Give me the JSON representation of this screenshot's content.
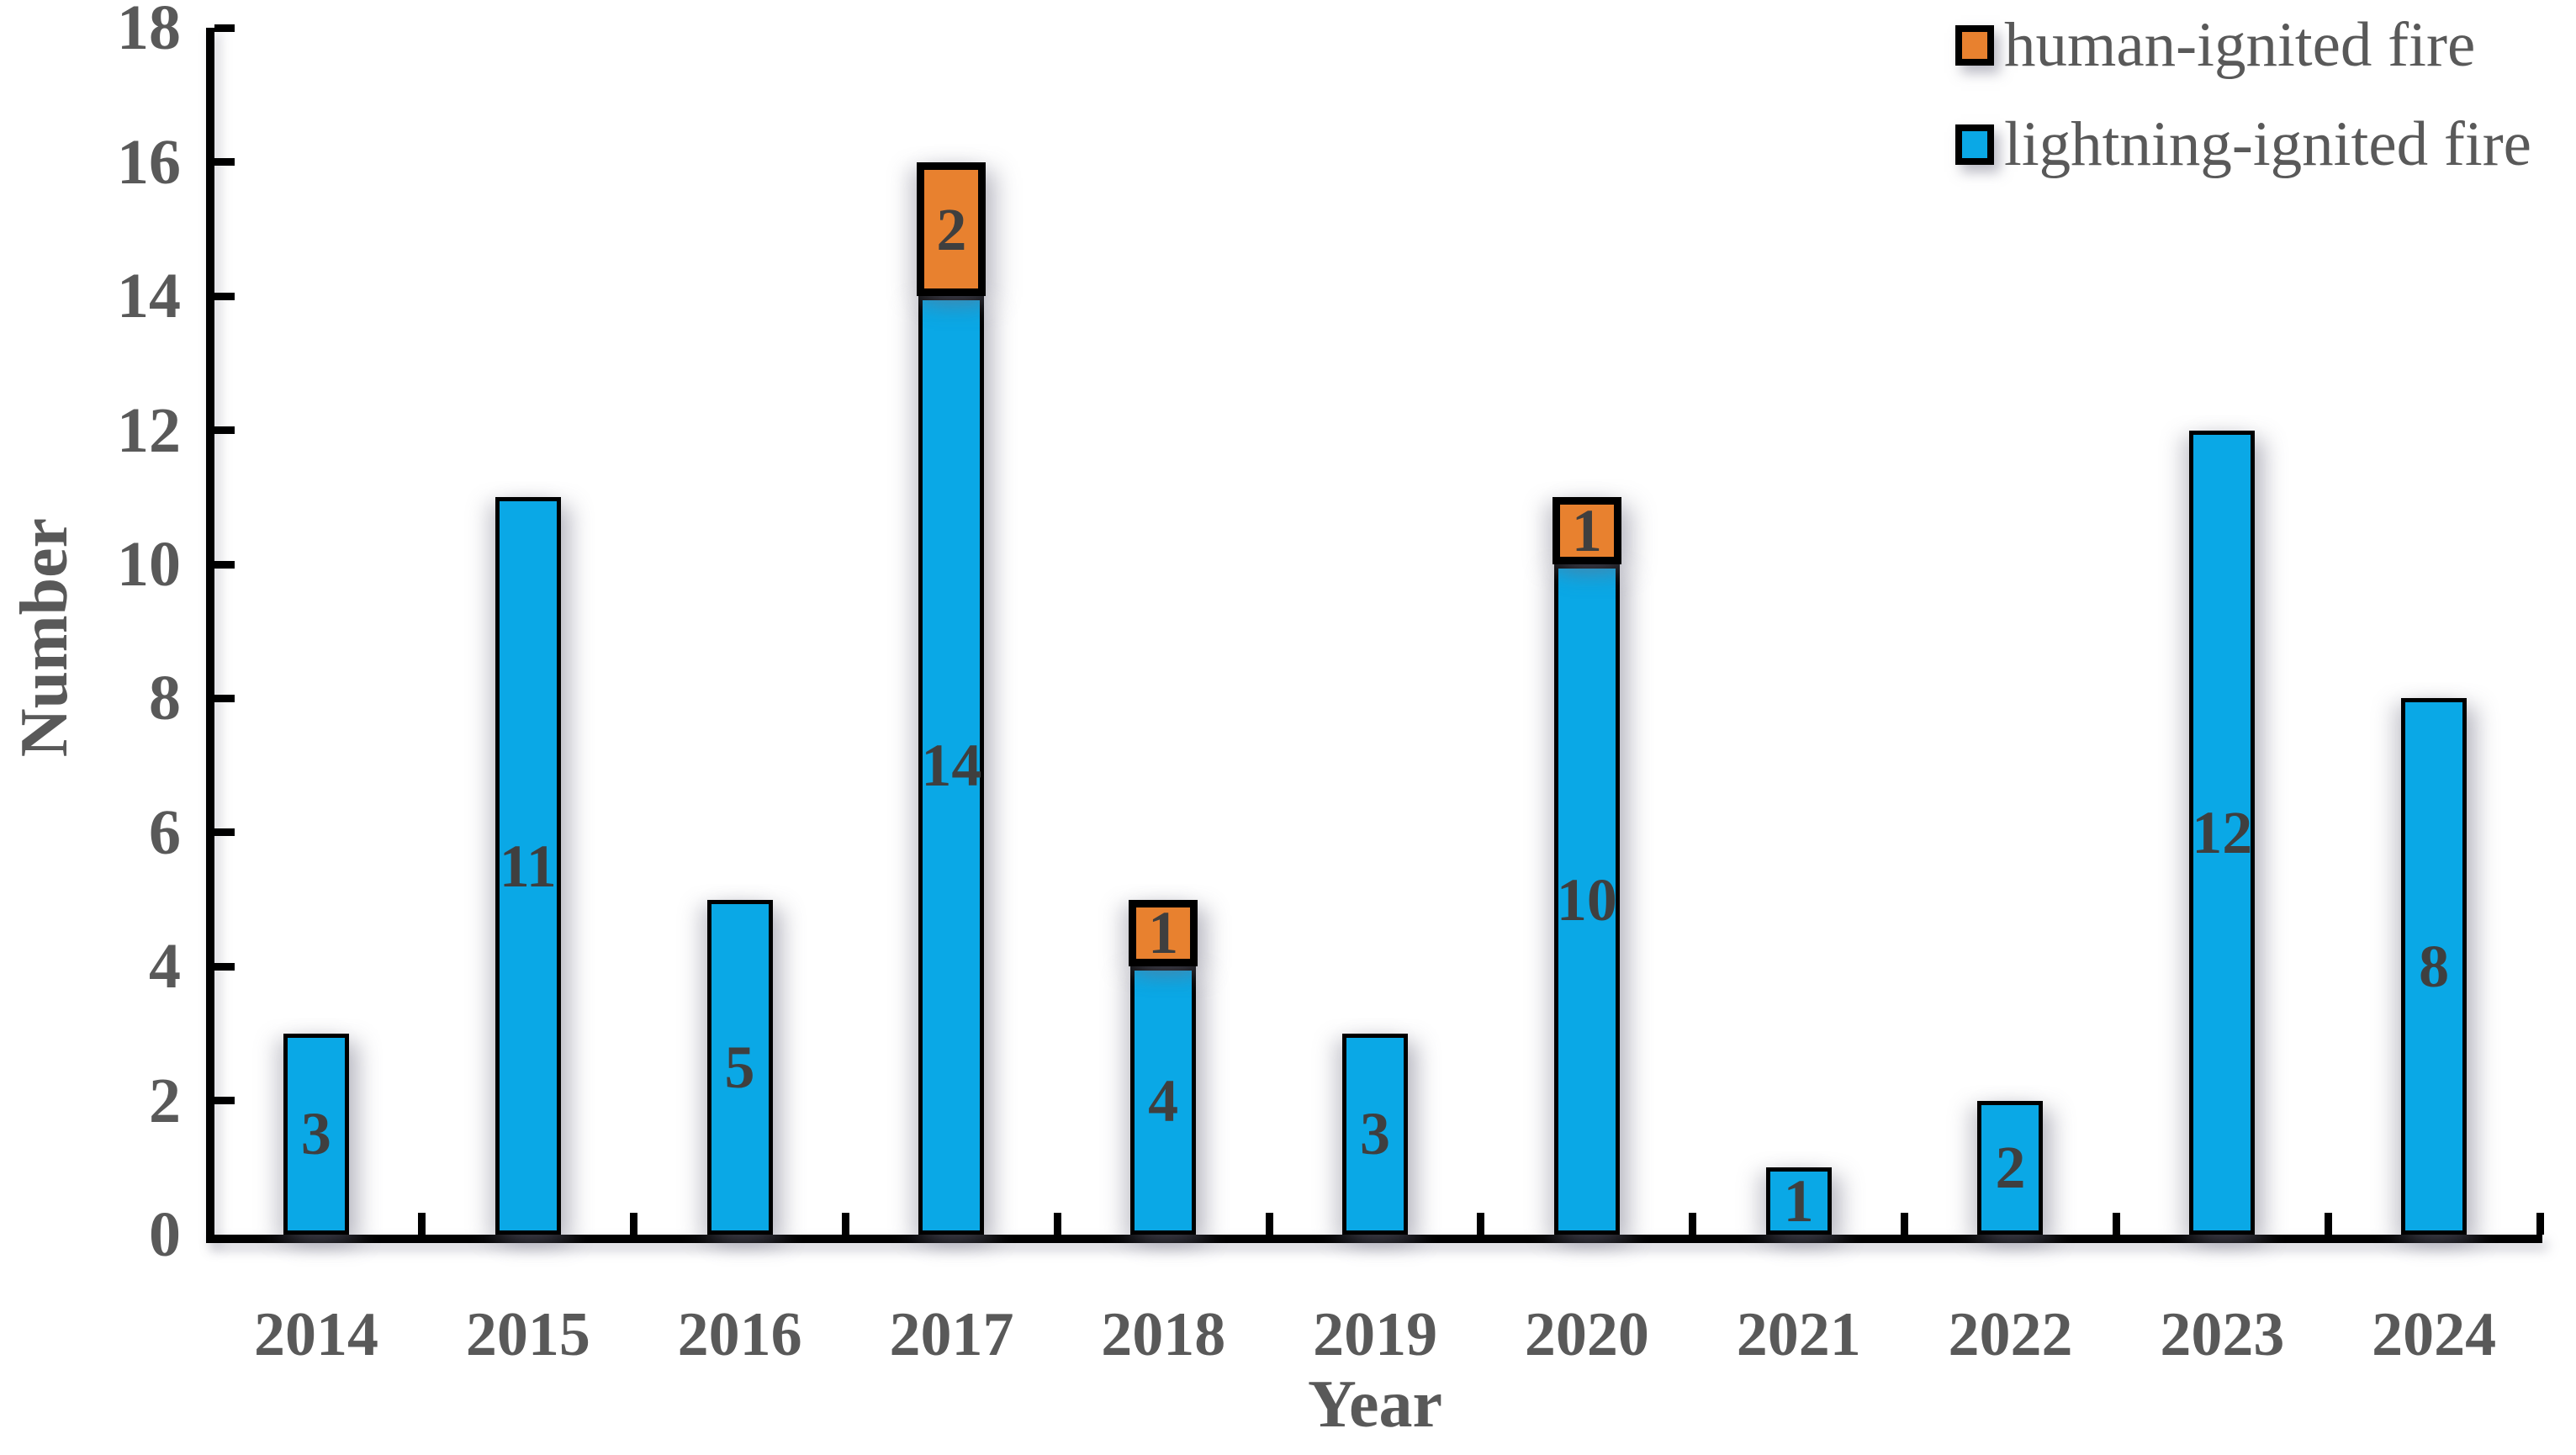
{
  "chart_data": {
    "type": "bar",
    "stacked": true,
    "title": "",
    "xlabel": "Year",
    "ylabel": "Number",
    "categories": [
      "2014",
      "2015",
      "2016",
      "2017",
      "2018",
      "2019",
      "2020",
      "2021",
      "2022",
      "2023",
      "2024"
    ],
    "series": [
      {
        "name": "lightning-ignited fire",
        "color": "#0AA8E6",
        "values": [
          3,
          11,
          5,
          14,
          4,
          3,
          10,
          1,
          2,
          12,
          8
        ]
      },
      {
        "name": "human-ignited fire",
        "color": "#E8812F",
        "values": [
          0,
          0,
          0,
          2,
          1,
          0,
          1,
          0,
          0,
          0,
          0
        ]
      }
    ],
    "totals": [
      3,
      11,
      5,
      16,
      5,
      3,
      11,
      1,
      2,
      12,
      8
    ],
    "segment_labels_shown_inside_bars": true,
    "ylim": [
      0,
      18
    ],
    "ytick_step": 2,
    "yticks": [
      0,
      2,
      4,
      6,
      8,
      10,
      12,
      14,
      16,
      18
    ],
    "grid": false,
    "legend_position": "top-right",
    "tick_direction": "inward"
  },
  "axes": {
    "y_title": "Number",
    "x_title": "Year"
  },
  "legend": {
    "items": [
      {
        "label": "human-ignited fire",
        "color": "#E8812F"
      },
      {
        "label": "lightning-ignited fire",
        "color": "#0AA8E6"
      }
    ]
  },
  "colors": {
    "bar_blue": "#0AA8E6",
    "bar_orange": "#E8812F",
    "axis": "#000000",
    "tick_label": "#595959",
    "bar_value_label": "#3f3f3f",
    "background": "#ffffff"
  }
}
